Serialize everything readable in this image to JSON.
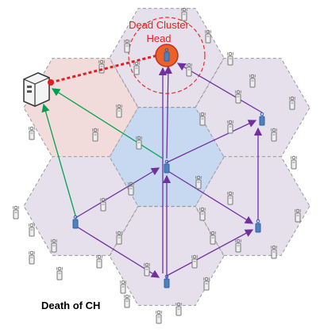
{
  "annotations": {
    "dead_cluster_head": [
      "Dead Cluster",
      "Head"
    ]
  },
  "caption": "Death of CH"
}
